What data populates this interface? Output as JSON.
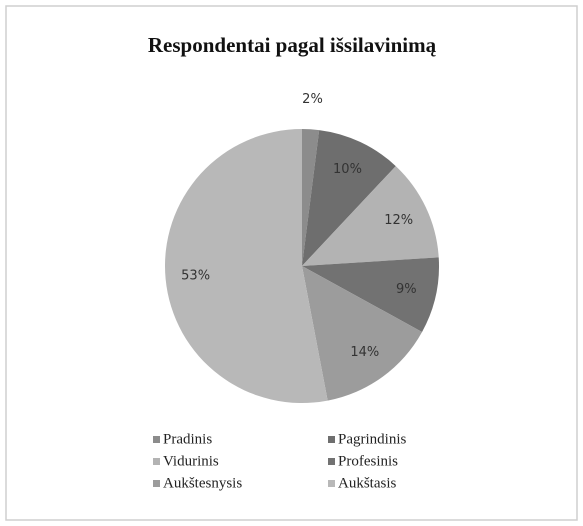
{
  "chart_data": {
    "type": "pie",
    "title": "Respondentai pagal išsilavinimą",
    "categories": [
      "Pradinis",
      "Pagrindinis",
      "Vidurinis",
      "Profesinis",
      "Aukštesnysis",
      "Aukštasis"
    ],
    "values": [
      2,
      10,
      12,
      9,
      14,
      53
    ],
    "value_labels": [
      "2%",
      "10%",
      "12%",
      "9%",
      "14%",
      "53%"
    ],
    "colors": [
      "#8c8c8c",
      "#6e6e6e",
      "#b3b3b3",
      "#727272",
      "#9c9c9c",
      "#b8b8b8"
    ],
    "legend": "bottom"
  }
}
